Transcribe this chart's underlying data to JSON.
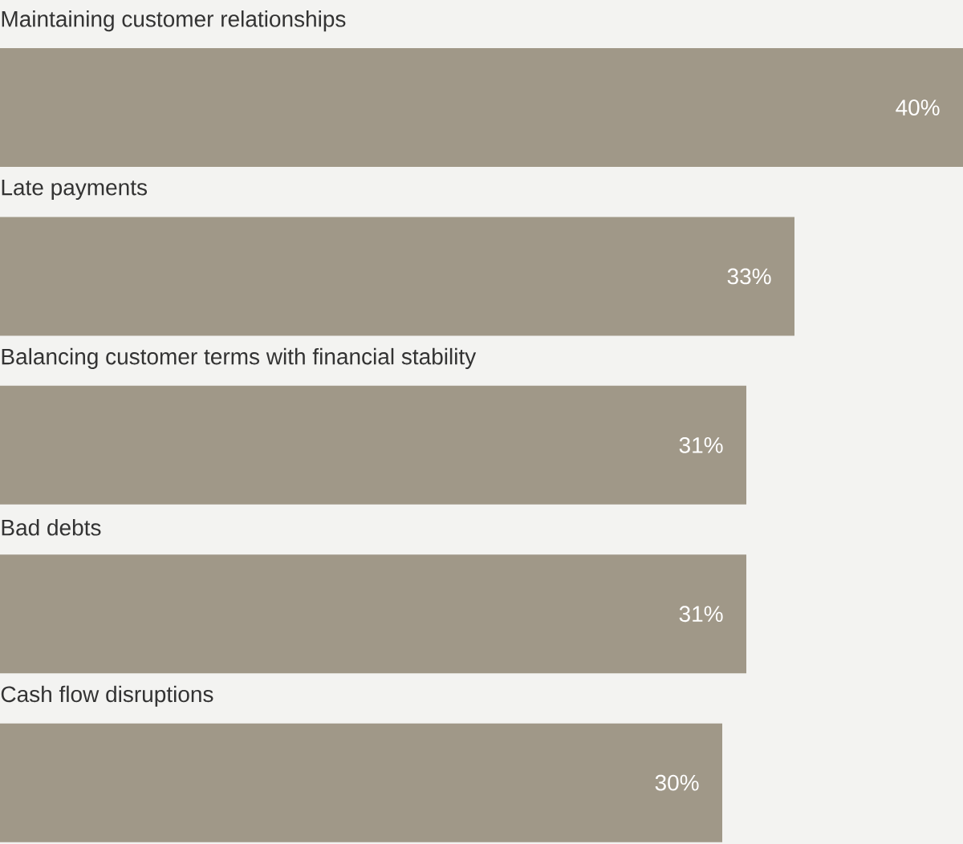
{
  "chart_data": {
    "type": "bar",
    "orientation": "horizontal",
    "categories": [
      "Maintaining customer relationships",
      "Late payments",
      "Balancing customer terms with financial stability",
      "Bad debts",
      "Cash flow disruptions"
    ],
    "values": [
      40,
      33,
      31,
      31,
      30
    ],
    "value_labels": [
      "40%",
      "33%",
      "31%",
      "31%",
      "30%"
    ],
    "color": "#a09888"
  }
}
